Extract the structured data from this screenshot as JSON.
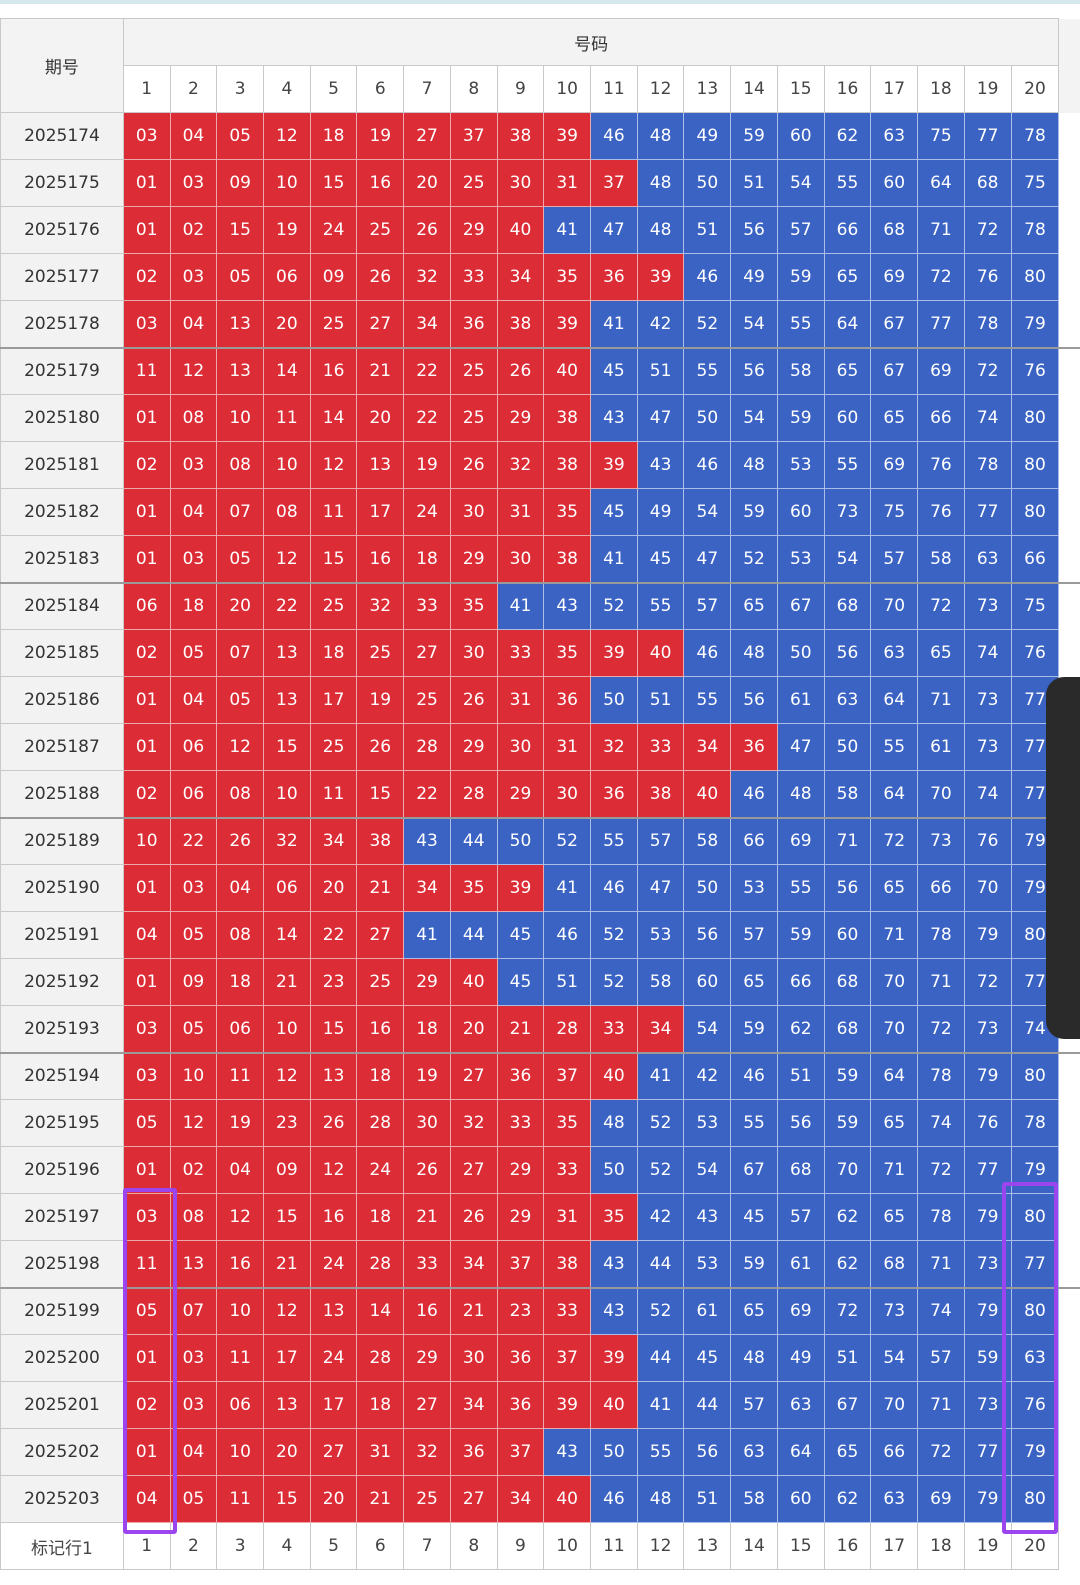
{
  "header": {
    "period_label": "期号",
    "numbers_label": "号码",
    "column_numbers": [
      "1",
      "2",
      "3",
      "4",
      "5",
      "6",
      "7",
      "8",
      "9",
      "10",
      "11",
      "12",
      "13",
      "14",
      "15",
      "16",
      "17",
      "18",
      "19",
      "20"
    ]
  },
  "colors": {
    "red": "#dc2d37",
    "blue": "#3a63c4",
    "highlight": "#9b45ef"
  },
  "rows": [
    {
      "period": "2025174",
      "numbers": [
        "03",
        "04",
        "05",
        "12",
        "18",
        "19",
        "27",
        "37",
        "38",
        "39",
        "46",
        "48",
        "49",
        "59",
        "60",
        "62",
        "63",
        "75",
        "77",
        "78"
      ]
    },
    {
      "period": "2025175",
      "numbers": [
        "01",
        "03",
        "09",
        "10",
        "15",
        "16",
        "20",
        "25",
        "30",
        "31",
        "37",
        "48",
        "50",
        "51",
        "54",
        "55",
        "60",
        "64",
        "68",
        "75"
      ]
    },
    {
      "period": "2025176",
      "numbers": [
        "01",
        "02",
        "15",
        "19",
        "24",
        "25",
        "26",
        "29",
        "40",
        "41",
        "47",
        "48",
        "51",
        "56",
        "57",
        "66",
        "68",
        "71",
        "72",
        "78"
      ]
    },
    {
      "period": "2025177",
      "numbers": [
        "02",
        "03",
        "05",
        "06",
        "09",
        "26",
        "32",
        "33",
        "34",
        "35",
        "36",
        "39",
        "46",
        "49",
        "59",
        "65",
        "69",
        "72",
        "76",
        "80"
      ]
    },
    {
      "period": "2025178",
      "numbers": [
        "03",
        "04",
        "13",
        "20",
        "25",
        "27",
        "34",
        "36",
        "38",
        "39",
        "41",
        "42",
        "52",
        "54",
        "55",
        "64",
        "67",
        "77",
        "78",
        "79"
      ]
    },
    {
      "period": "2025179",
      "numbers": [
        "11",
        "12",
        "13",
        "14",
        "16",
        "21",
        "22",
        "25",
        "26",
        "40",
        "45",
        "51",
        "55",
        "56",
        "58",
        "65",
        "67",
        "69",
        "72",
        "76"
      ]
    },
    {
      "period": "2025180",
      "numbers": [
        "01",
        "08",
        "10",
        "11",
        "14",
        "20",
        "22",
        "25",
        "29",
        "38",
        "43",
        "47",
        "50",
        "54",
        "59",
        "60",
        "65",
        "66",
        "74",
        "80"
      ]
    },
    {
      "period": "2025181",
      "numbers": [
        "02",
        "03",
        "08",
        "10",
        "12",
        "13",
        "19",
        "26",
        "32",
        "38",
        "39",
        "43",
        "46",
        "48",
        "53",
        "55",
        "69",
        "76",
        "78",
        "80"
      ]
    },
    {
      "period": "2025182",
      "numbers": [
        "01",
        "04",
        "07",
        "08",
        "11",
        "17",
        "24",
        "30",
        "31",
        "35",
        "45",
        "49",
        "54",
        "59",
        "60",
        "73",
        "75",
        "76",
        "77",
        "80"
      ]
    },
    {
      "period": "2025183",
      "numbers": [
        "01",
        "03",
        "05",
        "12",
        "15",
        "16",
        "18",
        "29",
        "30",
        "38",
        "41",
        "45",
        "47",
        "52",
        "53",
        "54",
        "57",
        "58",
        "63",
        "66"
      ]
    },
    {
      "period": "2025184",
      "numbers": [
        "06",
        "18",
        "20",
        "22",
        "25",
        "32",
        "33",
        "35",
        "41",
        "43",
        "52",
        "55",
        "57",
        "65",
        "67",
        "68",
        "70",
        "72",
        "73",
        "75"
      ]
    },
    {
      "period": "2025185",
      "numbers": [
        "02",
        "05",
        "07",
        "13",
        "18",
        "25",
        "27",
        "30",
        "33",
        "35",
        "39",
        "40",
        "46",
        "48",
        "50",
        "56",
        "63",
        "65",
        "74",
        "76"
      ]
    },
    {
      "period": "2025186",
      "numbers": [
        "01",
        "04",
        "05",
        "13",
        "17",
        "19",
        "25",
        "26",
        "31",
        "36",
        "50",
        "51",
        "55",
        "56",
        "61",
        "63",
        "64",
        "71",
        "73",
        "77"
      ]
    },
    {
      "period": "2025187",
      "numbers": [
        "01",
        "06",
        "12",
        "15",
        "25",
        "26",
        "28",
        "29",
        "30",
        "31",
        "32",
        "33",
        "34",
        "36",
        "47",
        "50",
        "55",
        "61",
        "73",
        "77"
      ]
    },
    {
      "period": "2025188",
      "numbers": [
        "02",
        "06",
        "08",
        "10",
        "11",
        "15",
        "22",
        "28",
        "29",
        "30",
        "36",
        "38",
        "40",
        "46",
        "48",
        "58",
        "64",
        "70",
        "74",
        "77"
      ]
    },
    {
      "period": "2025189",
      "numbers": [
        "10",
        "22",
        "26",
        "32",
        "34",
        "38",
        "43",
        "44",
        "50",
        "52",
        "55",
        "57",
        "58",
        "66",
        "69",
        "71",
        "72",
        "73",
        "76",
        "79"
      ]
    },
    {
      "period": "2025190",
      "numbers": [
        "01",
        "03",
        "04",
        "06",
        "20",
        "21",
        "34",
        "35",
        "39",
        "41",
        "46",
        "47",
        "50",
        "53",
        "55",
        "56",
        "65",
        "66",
        "70",
        "79"
      ]
    },
    {
      "period": "2025191",
      "numbers": [
        "04",
        "05",
        "08",
        "14",
        "22",
        "27",
        "41",
        "44",
        "45",
        "46",
        "52",
        "53",
        "56",
        "57",
        "59",
        "60",
        "71",
        "78",
        "79",
        "80"
      ]
    },
    {
      "period": "2025192",
      "numbers": [
        "01",
        "09",
        "18",
        "21",
        "23",
        "25",
        "29",
        "40",
        "45",
        "51",
        "52",
        "58",
        "60",
        "65",
        "66",
        "68",
        "70",
        "71",
        "72",
        "77"
      ]
    },
    {
      "period": "2025193",
      "numbers": [
        "03",
        "05",
        "06",
        "10",
        "15",
        "16",
        "18",
        "20",
        "21",
        "28",
        "33",
        "34",
        "54",
        "59",
        "62",
        "68",
        "70",
        "72",
        "73",
        "74"
      ]
    },
    {
      "period": "2025194",
      "numbers": [
        "03",
        "10",
        "11",
        "12",
        "13",
        "18",
        "19",
        "27",
        "36",
        "37",
        "40",
        "41",
        "42",
        "46",
        "51",
        "59",
        "64",
        "78",
        "79",
        "80"
      ]
    },
    {
      "period": "2025195",
      "numbers": [
        "05",
        "12",
        "19",
        "23",
        "26",
        "28",
        "30",
        "32",
        "33",
        "35",
        "48",
        "52",
        "53",
        "55",
        "56",
        "59",
        "65",
        "74",
        "76",
        "78"
      ]
    },
    {
      "period": "2025196",
      "numbers": [
        "01",
        "02",
        "04",
        "09",
        "12",
        "24",
        "26",
        "27",
        "29",
        "33",
        "50",
        "52",
        "54",
        "67",
        "68",
        "70",
        "71",
        "72",
        "77",
        "79"
      ]
    },
    {
      "period": "2025197",
      "numbers": [
        "03",
        "08",
        "12",
        "15",
        "16",
        "18",
        "21",
        "26",
        "29",
        "31",
        "35",
        "42",
        "43",
        "45",
        "57",
        "62",
        "65",
        "78",
        "79",
        "80"
      ]
    },
    {
      "period": "2025198",
      "numbers": [
        "11",
        "13",
        "16",
        "21",
        "24",
        "28",
        "33",
        "34",
        "37",
        "38",
        "43",
        "44",
        "53",
        "59",
        "61",
        "62",
        "68",
        "71",
        "73",
        "77"
      ]
    },
    {
      "period": "2025199",
      "numbers": [
        "05",
        "07",
        "10",
        "12",
        "13",
        "14",
        "16",
        "21",
        "23",
        "33",
        "43",
        "52",
        "61",
        "65",
        "69",
        "72",
        "73",
        "74",
        "79",
        "80"
      ]
    },
    {
      "period": "2025200",
      "numbers": [
        "01",
        "03",
        "11",
        "17",
        "24",
        "28",
        "29",
        "30",
        "36",
        "37",
        "39",
        "44",
        "45",
        "48",
        "49",
        "51",
        "54",
        "57",
        "59",
        "63"
      ]
    },
    {
      "period": "2025201",
      "numbers": [
        "02",
        "03",
        "06",
        "13",
        "17",
        "18",
        "27",
        "34",
        "36",
        "39",
        "40",
        "41",
        "44",
        "57",
        "63",
        "67",
        "70",
        "71",
        "73",
        "76"
      ]
    },
    {
      "period": "2025202",
      "numbers": [
        "01",
        "04",
        "10",
        "20",
        "27",
        "31",
        "32",
        "36",
        "37",
        "43",
        "50",
        "55",
        "56",
        "63",
        "64",
        "65",
        "66",
        "72",
        "77",
        "79"
      ]
    },
    {
      "period": "2025203",
      "numbers": [
        "04",
        "05",
        "11",
        "15",
        "20",
        "21",
        "25",
        "27",
        "34",
        "40",
        "46",
        "48",
        "51",
        "58",
        "60",
        "62",
        "63",
        "69",
        "79",
        "80"
      ]
    }
  ],
  "footer": {
    "label": "标记行1",
    "column_numbers": [
      "1",
      "2",
      "3",
      "4",
      "5",
      "6",
      "7",
      "8",
      "9",
      "10",
      "11",
      "12",
      "13",
      "14",
      "15",
      "16",
      "17",
      "18",
      "19",
      "20"
    ]
  }
}
